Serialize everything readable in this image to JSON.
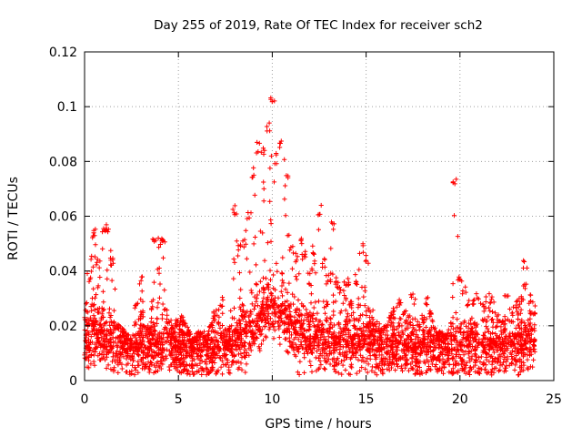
{
  "chart_data": {
    "type": "scatter",
    "title": "Day 255 of 2019, Rate Of TEC Index for receiver sch2",
    "xlabel": "GPS time / hours",
    "ylabel": "ROTI / TECUs",
    "xlim": [
      0,
      25
    ],
    "ylim": [
      0,
      0.12
    ],
    "x_ticks": [
      0,
      5,
      10,
      15,
      20,
      25
    ],
    "x_tick_labels": [
      "0",
      "5",
      "10",
      "15",
      "20",
      "25"
    ],
    "y_ticks": [
      0,
      0.02,
      0.04,
      0.06,
      0.08,
      0.1,
      0.12
    ],
    "y_tick_labels": [
      "0",
      "0.02",
      "0.04",
      "0.06",
      "0.08",
      "0.1",
      "0.12"
    ],
    "grid": true,
    "marker": "+",
    "color": "#ff0000",
    "series": [
      {
        "x": [
          0.0,
          0.25,
          0.5,
          0.75,
          1.0,
          1.25,
          1.5,
          1.75,
          2.0,
          2.25,
          2.5,
          2.75,
          3.0,
          3.25,
          3.5,
          3.75,
          4.0,
          4.25,
          4.5,
          4.75,
          5.0,
          5.25,
          5.5,
          5.75,
          6.0,
          6.25,
          6.5,
          6.75,
          7.0,
          7.25,
          7.5,
          7.75,
          8.0,
          8.25,
          8.5,
          8.75,
          9.0,
          9.25,
          9.5,
          9.75,
          10.0,
          10.25,
          10.5,
          10.75,
          11.0,
          11.25,
          11.5,
          11.75,
          12.0,
          12.25,
          12.5,
          12.75,
          13.0,
          13.25,
          13.5,
          13.75,
          14.0,
          14.25,
          14.5,
          14.75,
          15.0,
          15.25,
          15.5,
          15.75,
          16.0,
          16.25,
          16.5,
          16.75,
          17.0,
          17.25,
          17.5,
          17.75,
          18.0,
          18.25,
          18.5,
          18.75,
          19.0,
          19.25,
          19.5,
          19.75,
          20.0,
          20.25,
          20.5,
          20.75,
          21.0,
          21.25,
          21.5,
          21.75,
          22.0,
          22.25,
          22.5,
          22.75,
          23.0,
          23.25,
          23.5,
          23.75,
          24.0
        ],
        "y_max": [
          0.029,
          0.04,
          0.056,
          0.046,
          0.058,
          0.057,
          0.045,
          0.022,
          0.02,
          0.017,
          0.016,
          0.03,
          0.038,
          0.02,
          0.02,
          0.053,
          0.053,
          0.052,
          0.022,
          0.02,
          0.023,
          0.024,
          0.02,
          0.015,
          0.018,
          0.018,
          0.016,
          0.021,
          0.026,
          0.031,
          0.019,
          0.02,
          0.064,
          0.05,
          0.052,
          0.063,
          0.078,
          0.087,
          0.086,
          0.095,
          0.104,
          0.083,
          0.089,
          0.075,
          0.05,
          0.047,
          0.052,
          0.048,
          0.042,
          0.05,
          0.064,
          0.045,
          0.04,
          0.059,
          0.036,
          0.036,
          0.038,
          0.03,
          0.039,
          0.05,
          0.046,
          0.026,
          0.022,
          0.021,
          0.02,
          0.024,
          0.027,
          0.03,
          0.026,
          0.024,
          0.032,
          0.023,
          0.024,
          0.031,
          0.026,
          0.018,
          0.018,
          0.017,
          0.02,
          0.074,
          0.039,
          0.035,
          0.03,
          0.03,
          0.032,
          0.028,
          0.032,
          0.031,
          0.026,
          0.022,
          0.034,
          0.028,
          0.03,
          0.03,
          0.044,
          0.032,
          0.028
        ],
        "y_typical": [
          0.015,
          0.016,
          0.017,
          0.016,
          0.016,
          0.015,
          0.014,
          0.013,
          0.012,
          0.011,
          0.011,
          0.011,
          0.012,
          0.012,
          0.012,
          0.013,
          0.013,
          0.013,
          0.013,
          0.012,
          0.012,
          0.012,
          0.012,
          0.011,
          0.011,
          0.011,
          0.011,
          0.011,
          0.012,
          0.012,
          0.012,
          0.012,
          0.014,
          0.015,
          0.016,
          0.018,
          0.02,
          0.022,
          0.024,
          0.026,
          0.027,
          0.026,
          0.024,
          0.022,
          0.02,
          0.018,
          0.016,
          0.015,
          0.015,
          0.015,
          0.015,
          0.014,
          0.014,
          0.014,
          0.013,
          0.013,
          0.013,
          0.013,
          0.014,
          0.014,
          0.014,
          0.013,
          0.013,
          0.012,
          0.012,
          0.012,
          0.012,
          0.012,
          0.012,
          0.012,
          0.012,
          0.012,
          0.012,
          0.012,
          0.012,
          0.012,
          0.012,
          0.011,
          0.011,
          0.011,
          0.012,
          0.012,
          0.012,
          0.012,
          0.012,
          0.012,
          0.012,
          0.012,
          0.012,
          0.012,
          0.013,
          0.013,
          0.013,
          0.013,
          0.014,
          0.014,
          0.014
        ],
        "y_min": 0.002
      }
    ]
  }
}
